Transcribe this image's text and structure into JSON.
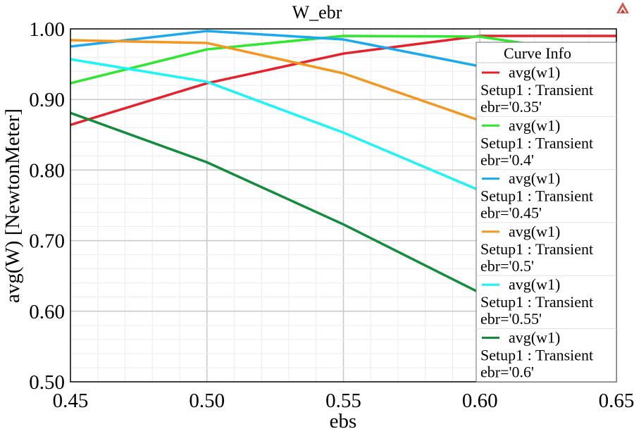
{
  "chart_data": {
    "type": "line",
    "title": "W_ebr",
    "xlabel": "ebs",
    "ylabel": "avg(W) [NewtonMeter]",
    "xlim": [
      0.45,
      0.65
    ],
    "ylim": [
      0.5,
      1.0
    ],
    "x_ticks": [
      "0.45",
      "0.50",
      "0.55",
      "0.60",
      "0.65"
    ],
    "y_ticks": [
      "1.00",
      "0.90",
      "0.80",
      "0.70",
      "0.60",
      "0.50"
    ],
    "grid": true,
    "legend": {
      "title": "Curve Info",
      "placement": "right"
    },
    "x": [
      0.45,
      0.5,
      0.55,
      0.6,
      0.65
    ],
    "series": [
      {
        "name": "avg(w1)",
        "setup": "Setup1 : Transient",
        "param": "ebr='0.35'",
        "color": "#e8202a",
        "values": [
          0.864,
          0.923,
          0.965,
          0.99,
          0.99
        ]
      },
      {
        "name": "avg(w1)",
        "setup": "Setup1 : Transient",
        "param": "ebr='0.4'",
        "color": "#2ee82e",
        "values": [
          0.923,
          0.971,
          0.99,
          0.989,
          0.96
        ]
      },
      {
        "name": "avg(w1)",
        "setup": "Setup1 : Transient",
        "param": "ebr='0.45'",
        "color": "#1aa9f0",
        "values": [
          0.975,
          0.997,
          0.985,
          0.947,
          0.9
        ]
      },
      {
        "name": "avg(w1)",
        "setup": "Setup1 : Transient",
        "param": "ebr='0.5'",
        "color": "#f5961e",
        "values": [
          0.984,
          0.98,
          0.937,
          0.87,
          0.8
        ]
      },
      {
        "name": "avg(w1)",
        "setup": "Setup1 : Transient",
        "param": "ebr='0.55'",
        "color": "#1af5f5",
        "values": [
          0.957,
          0.925,
          0.853,
          0.771,
          0.69
        ]
      },
      {
        "name": "avg(w1)",
        "setup": "Setup1 : Transient",
        "param": "ebr='0.6'",
        "color": "#138c3c",
        "values": [
          0.881,
          0.811,
          0.723,
          0.626,
          0.54
        ]
      }
    ]
  }
}
